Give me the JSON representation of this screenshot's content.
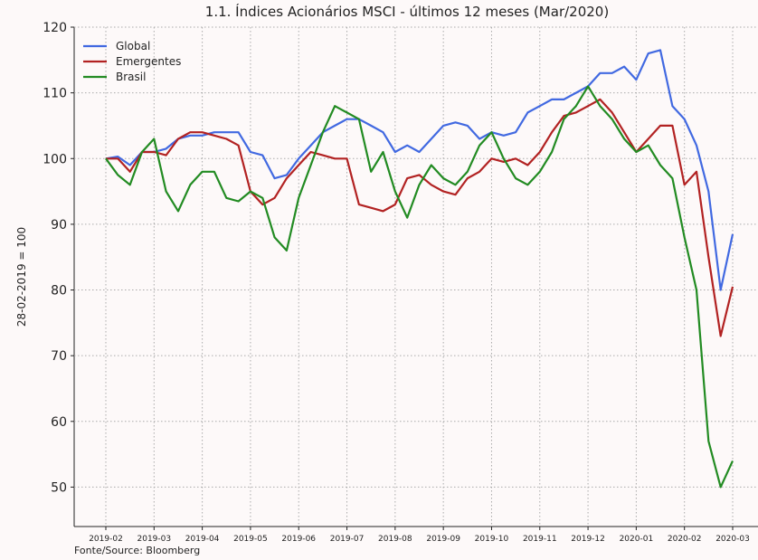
{
  "chart_data": {
    "type": "line",
    "title": "1.1. Índices Acionários MSCI - últimos 12 meses (Mar/2020)",
    "y_label": "28-02-2019 = 100",
    "source": "Fonte/Source: Bloomberg",
    "x": [
      "2019-02",
      "2019-02",
      "2019-02",
      "2019-02",
      "2019-03",
      "2019-03",
      "2019-03",
      "2019-03",
      "2019-04",
      "2019-04",
      "2019-04",
      "2019-04",
      "2019-05",
      "2019-05",
      "2019-05",
      "2019-05",
      "2019-06",
      "2019-06",
      "2019-06",
      "2019-06",
      "2019-07",
      "2019-07",
      "2019-07",
      "2019-07",
      "2019-08",
      "2019-08",
      "2019-08",
      "2019-08",
      "2019-09",
      "2019-09",
      "2019-09",
      "2019-09",
      "2019-10",
      "2019-10",
      "2019-10",
      "2019-10",
      "2019-11",
      "2019-11",
      "2019-11",
      "2019-11",
      "2019-12",
      "2019-12",
      "2019-12",
      "2019-12",
      "2020-01",
      "2020-01",
      "2020-01",
      "2020-01",
      "2020-02",
      "2020-02",
      "2020-02",
      "2020-02",
      "2020-03"
    ],
    "xticks": [
      "2019-02",
      "2019-03",
      "2019-04",
      "2019-05",
      "2019-06",
      "2019-07",
      "2019-08",
      "2019-09",
      "2019-10",
      "2019-11",
      "2019-12",
      "2020-01",
      "2020-02",
      "2020-03"
    ],
    "ylim": [
      44,
      120
    ],
    "yticks": [
      50,
      60,
      70,
      80,
      90,
      100,
      110,
      120
    ],
    "grid": true,
    "legend": "upper left",
    "series": [
      {
        "name": "Global",
        "color": "#4169e1",
        "values": [
          100,
          100.3,
          99,
          101,
          101,
          101.5,
          103,
          103.5,
          103.5,
          104,
          104,
          104,
          101,
          100.5,
          97,
          97.5,
          100,
          102,
          104,
          105,
          106,
          106,
          105,
          104,
          101,
          102,
          101,
          103,
          105,
          105.5,
          105,
          103,
          104,
          103.5,
          104,
          107,
          108,
          109,
          109,
          110,
          111,
          113,
          113,
          114,
          112,
          116,
          116.5,
          108,
          106,
          102,
          95,
          80,
          88.5
        ]
      },
      {
        "name": "Emergentes",
        "color": "#b22222",
        "values": [
          100,
          100,
          98,
          101,
          101,
          100.5,
          103,
          104,
          104,
          103.5,
          103,
          102,
          95,
          93,
          94,
          97,
          99,
          101,
          100.5,
          100,
          100,
          93,
          92.5,
          92,
          93,
          97,
          97.5,
          96,
          95,
          94.5,
          97,
          98,
          100,
          99.5,
          100,
          99,
          101,
          104,
          106.5,
          107,
          108,
          109,
          107,
          104,
          101,
          103,
          105,
          105,
          96,
          98,
          85,
          73,
          80.5
        ]
      },
      {
        "name": "Brasil",
        "color": "#228b22",
        "values": [
          100,
          97.5,
          96,
          101,
          103,
          95,
          92,
          96,
          98,
          98,
          94,
          93.5,
          95,
          94,
          88,
          86,
          94,
          99,
          104,
          108,
          107,
          106,
          98,
          101,
          95,
          91,
          96,
          99,
          97,
          96,
          98,
          102,
          104,
          100,
          97,
          96,
          98,
          101,
          106,
          108,
          111,
          108,
          106,
          103,
          101,
          102,
          99,
          97,
          88,
          80,
          57,
          50,
          54
        ]
      }
    ]
  }
}
